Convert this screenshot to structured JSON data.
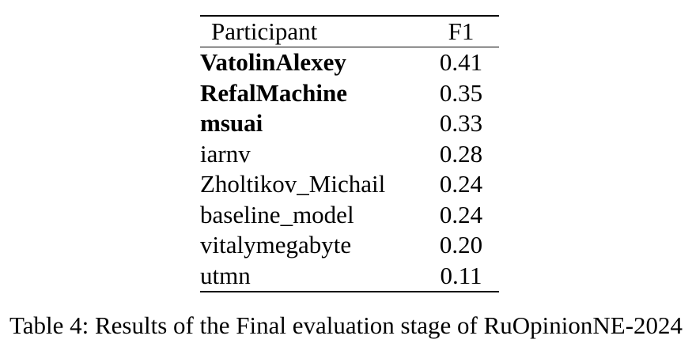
{
  "caption": "Table 4: Results of the Final evaluation stage of RuOpinionNE-2024",
  "table": {
    "headers": [
      "Participant",
      "F1"
    ],
    "rows": [
      {
        "participant": "VatolinAlexey",
        "f1": "0.41",
        "bold": true
      },
      {
        "participant": "RefalMachine",
        "f1": "0.35",
        "bold": true
      },
      {
        "participant": "msuai",
        "f1": "0.33",
        "bold": true
      },
      {
        "participant": "iarnv",
        "f1": "0.28",
        "bold": false
      },
      {
        "participant": "Zholtikov_Michail",
        "f1": "0.24",
        "bold": false
      },
      {
        "participant": "baseline_model",
        "f1": "0.24",
        "bold": false
      },
      {
        "participant": "vitalymegabyte",
        "f1": "0.20",
        "bold": false
      },
      {
        "participant": "utmn",
        "f1": "0.11",
        "bold": false
      }
    ]
  },
  "colors": {
    "text": "#000000",
    "background": "#ffffff",
    "rule": "#000000"
  }
}
